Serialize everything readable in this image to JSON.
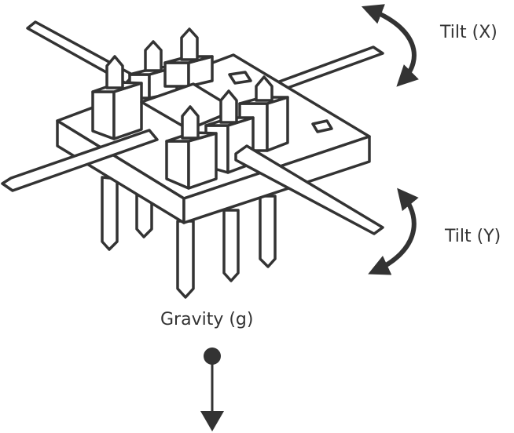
{
  "labels": {
    "tilt_x": "Tilt (X)",
    "tilt_y": "Tilt (Y)",
    "gravity": "Gravity (g)"
  },
  "colors": {
    "stroke": "#333333",
    "fill": "#ffffff"
  }
}
